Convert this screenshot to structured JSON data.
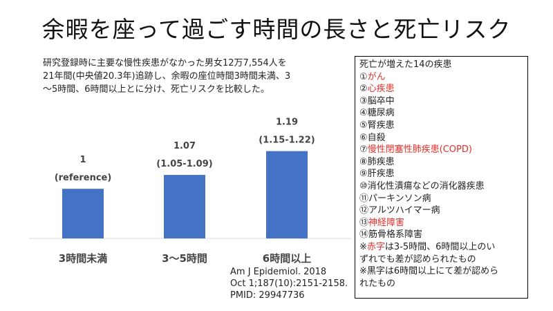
{
  "title": "余暇を座って過ごす時間の長さと死亡リスク",
  "description_lines": [
    "研究登録時に主要な慢性疾患がなかった男女12万7,554人を",
    "21年間(中央値20.3年)追跡し、余暇の座位時間3時間未満、3",
    "〜5時間、6時間以上とに分け、死亡リスクを比較した。"
  ],
  "chart_data": {
    "type": "bar",
    "categories": [
      "3時間未満",
      "3〜5時間",
      "6時間以上"
    ],
    "values": [
      1,
      1.07,
      1.19
    ],
    "value_labels": [
      "1",
      "1.07",
      "1.19"
    ],
    "ci_labels": [
      "(reference)",
      "(1.05-1.09)",
      "(1.15-1.22)"
    ],
    "bar_color": "#4472c4",
    "ylim": [
      0.75,
      1.22
    ]
  },
  "citation_lines": [
    "Am J Epidemiol. 2018",
    "Oct 1;187(10):2151-2158.",
    "PMID: 29947736"
  ],
  "disease_box": {
    "title": "死亡が増えた14の疾患",
    "items": [
      {
        "marker": "①",
        "name": "がん",
        "red": true
      },
      {
        "marker": "②",
        "name": "心疾患",
        "red": true
      },
      {
        "marker": "③",
        "name": "脳卒中",
        "red": false
      },
      {
        "marker": "④",
        "name": "糖尿病",
        "red": false
      },
      {
        "marker": "⑤",
        "name": "腎疾患",
        "red": false
      },
      {
        "marker": "⑥",
        "name": "自殺",
        "red": false
      },
      {
        "marker": "⑦",
        "name": "慢性閉塞性肺疾患(COPD)",
        "red": true
      },
      {
        "marker": "⑧",
        "name": "肺疾患",
        "red": false
      },
      {
        "marker": "⑨",
        "name": "肝疾患",
        "red": false
      },
      {
        "marker": "⑩",
        "name": "消化性潰瘍などの消化器疾患",
        "red": false
      },
      {
        "marker": "⑪",
        "name": "パーキンソン病",
        "red": false
      },
      {
        "marker": "⑫",
        "name": "アルツハイマー病",
        "red": false
      },
      {
        "marker": "⑬",
        "name": "神経障害",
        "red": true
      },
      {
        "marker": "⑭",
        "name": "筋骨格系障害",
        "red": false
      }
    ],
    "note_red_prefix": "※",
    "note_red_word": "赤字",
    "note_red_rest_1": "は3-5時間、6時間以上のい",
    "note_red_rest_2": "ずれでも差が認められたもの",
    "note_black_1": "※黒字は6時間以上にて差が認めら",
    "note_black_2": "れたもの",
    "accent_red": "#e0302a"
  }
}
